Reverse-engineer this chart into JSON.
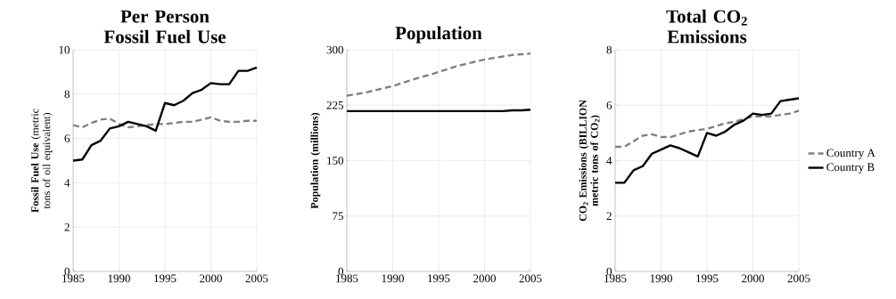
{
  "chart_data": [
    {
      "type": "line",
      "title": "Per Person Fossil Fuel Use",
      "ylabel": "**Fossil Fuel Use** (metric tons of oil equivalent)",
      "x": [
        1985,
        1986,
        1987,
        1988,
        1989,
        1990,
        1991,
        1992,
        1993,
        1994,
        1995,
        1996,
        1997,
        1998,
        1999,
        2000,
        2001,
        2002,
        2003,
        2004,
        2005
      ],
      "xlim": [
        1985,
        2005
      ],
      "xticks": [
        1985,
        1990,
        1995,
        2000,
        2005
      ],
      "ylim": [
        0,
        10
      ],
      "yticks": [
        0,
        2,
        4,
        6,
        8,
        10
      ],
      "grid": true,
      "series": [
        {
          "color": "#808080",
          "line_style": "dashed",
          "values": [
            6.6,
            6.5,
            6.7,
            6.85,
            6.9,
            6.65,
            6.5,
            6.55,
            6.6,
            6.65,
            6.65,
            6.7,
            6.75,
            6.75,
            6.85,
            6.95,
            6.8,
            6.75,
            6.75,
            6.8,
            6.8
          ]
        },
        {
          "color": "#000000",
          "line_style": "solid",
          "values": [
            5.0,
            5.05,
            5.7,
            5.9,
            6.45,
            6.55,
            6.75,
            6.65,
            6.55,
            6.35,
            7.6,
            7.5,
            7.7,
            8.05,
            8.2,
            8.5,
            8.45,
            8.45,
            9.05,
            9.05,
            9.2
          ]
        }
      ]
    },
    {
      "type": "line",
      "title": "Population",
      "ylabel": "Population (millions)",
      "x": [
        1985,
        1986,
        1987,
        1988,
        1989,
        1990,
        1991,
        1992,
        1993,
        1994,
        1995,
        1996,
        1997,
        1998,
        1999,
        2000,
        2001,
        2002,
        2003,
        2004,
        2005
      ],
      "xlim": [
        1985,
        2005
      ],
      "xticks": [
        1985,
        1990,
        1995,
        2000,
        2005
      ],
      "ylim": [
        0,
        300
      ],
      "yticks": [
        0,
        75,
        150,
        225,
        300
      ],
      "grid": true,
      "series": [
        {
          "color": "#808080",
          "line_style": "dashed",
          "values": [
            238,
            240,
            242,
            245,
            248,
            251,
            255,
            259,
            263,
            266,
            270,
            274,
            278,
            281,
            284,
            287,
            289,
            291,
            293,
            294,
            295
          ]
        },
        {
          "color": "#000000",
          "line_style": "solid",
          "values": [
            217,
            217,
            217,
            217,
            217,
            217,
            217,
            217,
            217,
            217,
            217,
            217,
            217,
            217,
            217,
            217,
            217,
            217,
            218,
            218,
            219
          ]
        }
      ]
    },
    {
      "type": "line",
      "title": "Total CO$_{2}$ Emissions",
      "ylabel": "CO$_{2}$ Emissions (BILLION metric tons of CO$_{2}$)",
      "x": [
        1985,
        1986,
        1987,
        1988,
        1989,
        1990,
        1991,
        1992,
        1993,
        1994,
        1995,
        1996,
        1997,
        1998,
        1999,
        2000,
        2001,
        2002,
        2003,
        2004,
        2005
      ],
      "xlim": [
        1985,
        2005
      ],
      "xticks": [
        1985,
        1990,
        1995,
        2000,
        2005
      ],
      "ylim": [
        0,
        8
      ],
      "yticks": [
        0,
        2,
        4,
        6,
        8
      ],
      "grid": true,
      "legend": "right",
      "series": [
        {
          "name": "Country A",
          "color": "#808080",
          "line_style": "dashed",
          "values": [
            4.5,
            4.5,
            4.7,
            4.9,
            4.95,
            4.85,
            4.85,
            4.95,
            5.05,
            5.1,
            5.15,
            5.25,
            5.35,
            5.4,
            5.5,
            5.6,
            5.6,
            5.6,
            5.65,
            5.7,
            5.8
          ]
        },
        {
          "name": "Country B",
          "color": "#000000",
          "line_style": "solid",
          "values": [
            3.2,
            3.2,
            3.65,
            3.8,
            4.25,
            4.4,
            4.55,
            4.45,
            4.3,
            4.15,
            5.0,
            4.9,
            5.05,
            5.3,
            5.45,
            5.7,
            5.65,
            5.7,
            6.15,
            6.2,
            6.25
          ]
        }
      ]
    }
  ]
}
